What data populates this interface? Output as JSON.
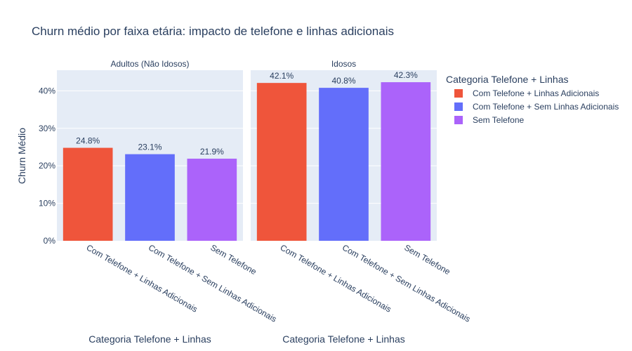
{
  "chart_data": {
    "type": "bar",
    "title": "Churn médio por faixa etária: impacto de telefone e linhas adicionais",
    "ylabel": "Churn Médio",
    "xlabel": "Categoria Telefone + Linhas",
    "ylim": [
      0,
      0.455
    ],
    "y_ticks": [
      0,
      0.1,
      0.2,
      0.3,
      0.4
    ],
    "y_tick_labels": [
      "0%",
      "10%",
      "20%",
      "30%",
      "40%"
    ],
    "categories": [
      "Com Telefone + Linhas Adicionais",
      "Com Telefone + Sem Linhas Adicionais",
      "Sem Telefone"
    ],
    "colors": [
      "#EF553B",
      "#636EFA",
      "#AB63FA"
    ],
    "legend": {
      "title": "Categoria Telefone + Linhas",
      "placement": "right",
      "items": [
        "Com Telefone + Linhas Adicionais",
        "Com Telefone + Sem Linhas Adicionais",
        "Sem Telefone"
      ]
    },
    "panels": [
      {
        "subtitle": "Adultos (Não Idosos)",
        "values": [
          0.248,
          0.231,
          0.219
        ],
        "labels": [
          "24.8%",
          "23.1%",
          "21.9%"
        ]
      },
      {
        "subtitle": "Idosos",
        "values": [
          0.421,
          0.408,
          0.423
        ],
        "labels": [
          "42.1%",
          "40.8%",
          "42.3%"
        ]
      }
    ],
    "grid": true
  }
}
